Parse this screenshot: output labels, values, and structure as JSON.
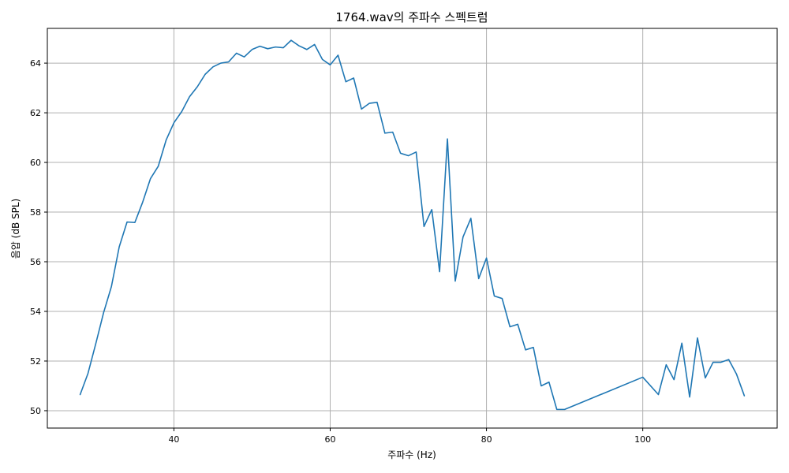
{
  "chart_data": {
    "type": "line",
    "title": "1764.wav의 주파수 스펙트럼",
    "xlabel": "주파수 (Hz)",
    "ylabel": "음압 (dB SPL)",
    "xlim": [
      23.8,
      117.2
    ],
    "ylim": [
      49.3,
      65.4
    ],
    "xticks": [
      40,
      60,
      80,
      100
    ],
    "yticks": [
      50,
      52,
      54,
      56,
      58,
      60,
      62,
      64
    ],
    "grid": true,
    "series": [
      {
        "color": "#1f77b4",
        "x": [
          28,
          29,
          30,
          31,
          32,
          33,
          34,
          35,
          36,
          37,
          38,
          39,
          40,
          41,
          42,
          43,
          44,
          45,
          46,
          47,
          48,
          49,
          50,
          51,
          52,
          53,
          54,
          55,
          56,
          57,
          58,
          59,
          60,
          61,
          62,
          63,
          64,
          65,
          66,
          67,
          68,
          69,
          70,
          71,
          72,
          73,
          74,
          75,
          76,
          77,
          78,
          79,
          80,
          81,
          82,
          83,
          84,
          85,
          86,
          87,
          88,
          89,
          90,
          100,
          102,
          103,
          104,
          105,
          106,
          107,
          108,
          109,
          110,
          111,
          112,
          113
        ],
        "y": [
          50.65,
          51.5,
          52.7,
          53.95,
          55.0,
          56.6,
          57.6,
          57.58,
          58.4,
          59.35,
          59.85,
          60.9,
          61.6,
          62.05,
          62.65,
          63.05,
          63.55,
          63.85,
          64.0,
          64.05,
          64.4,
          64.25,
          64.55,
          64.68,
          64.58,
          64.65,
          64.62,
          64.92,
          64.7,
          64.55,
          64.75,
          64.15,
          63.93,
          64.32,
          63.25,
          63.4,
          62.15,
          62.38,
          62.42,
          61.18,
          61.22,
          60.37,
          60.27,
          60.42,
          57.42,
          58.1,
          55.6,
          60.95,
          55.22,
          57.0,
          57.75,
          55.32,
          56.15,
          54.62,
          54.52,
          53.38,
          53.48,
          52.45,
          52.55,
          51.0,
          51.15,
          50.05,
          50.05,
          51.35,
          50.65,
          51.85,
          51.25,
          52.72,
          50.55,
          52.93,
          51.32,
          51.95,
          51.95,
          52.06,
          51.47,
          50.6
        ]
      }
    ]
  }
}
